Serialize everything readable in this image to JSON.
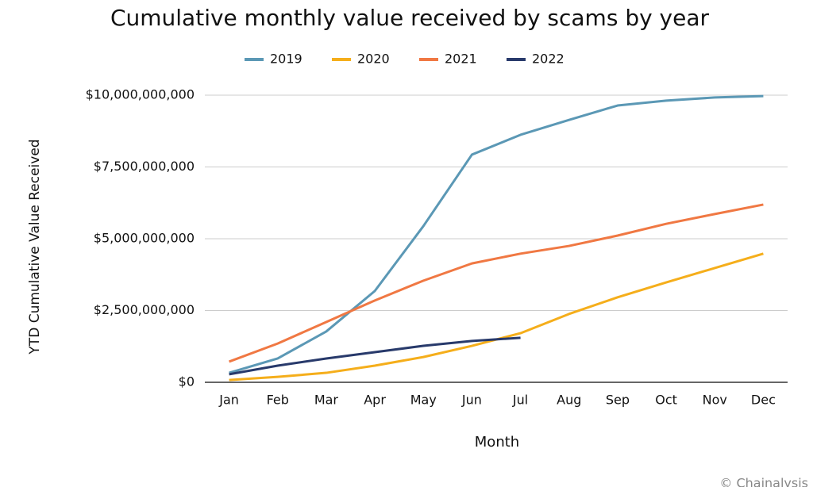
{
  "chart_data": {
    "type": "line",
    "title": "Cumulative monthly value received by scams by year",
    "x_label": "Month",
    "y_label": "YTD Cumulative Value Received",
    "credit": "© Chainalysis",
    "categories": [
      "Jan",
      "Feb",
      "Mar",
      "Apr",
      "May",
      "Jun",
      "Jul",
      "Aug",
      "Sep",
      "Oct",
      "Nov",
      "Dec"
    ],
    "series": [
      {
        "name": "2019",
        "color": "#5b98b5",
        "values": [
          330000000,
          830000000,
          1770000000,
          3180000000,
          5440000000,
          7930000000,
          8620000000,
          9140000000,
          9640000000,
          9810000000,
          9920000000,
          9970000000
        ]
      },
      {
        "name": "2020",
        "color": "#f5ae1b",
        "values": [
          80000000,
          190000000,
          330000000,
          580000000,
          880000000,
          1270000000,
          1710000000,
          2380000000,
          2960000000,
          3480000000,
          3980000000,
          4480000000
        ]
      },
      {
        "name": "2021",
        "color": "#f07843",
        "values": [
          720000000,
          1350000000,
          2100000000,
          2850000000,
          3540000000,
          4140000000,
          4480000000,
          4750000000,
          5110000000,
          5520000000,
          5860000000,
          6190000000
        ]
      },
      {
        "name": "2022",
        "color": "#283a6b",
        "values": [
          280000000,
          580000000,
          830000000,
          1050000000,
          1270000000,
          1440000000,
          1550000000,
          null,
          null,
          null,
          null,
          null
        ]
      }
    ],
    "ylim": [
      0,
      10000000000
    ],
    "yticks": [
      {
        "value": 0,
        "label": "$0"
      },
      {
        "value": 2500000000,
        "label": "$2,500,000,000"
      },
      {
        "value": 5000000000,
        "label": "$5,000,000,000"
      },
      {
        "value": 7500000000,
        "label": "$7,500,000,000"
      },
      {
        "value": 10000000000,
        "label": "$10,000,000,000"
      }
    ],
    "grid": true,
    "legend": "top"
  }
}
